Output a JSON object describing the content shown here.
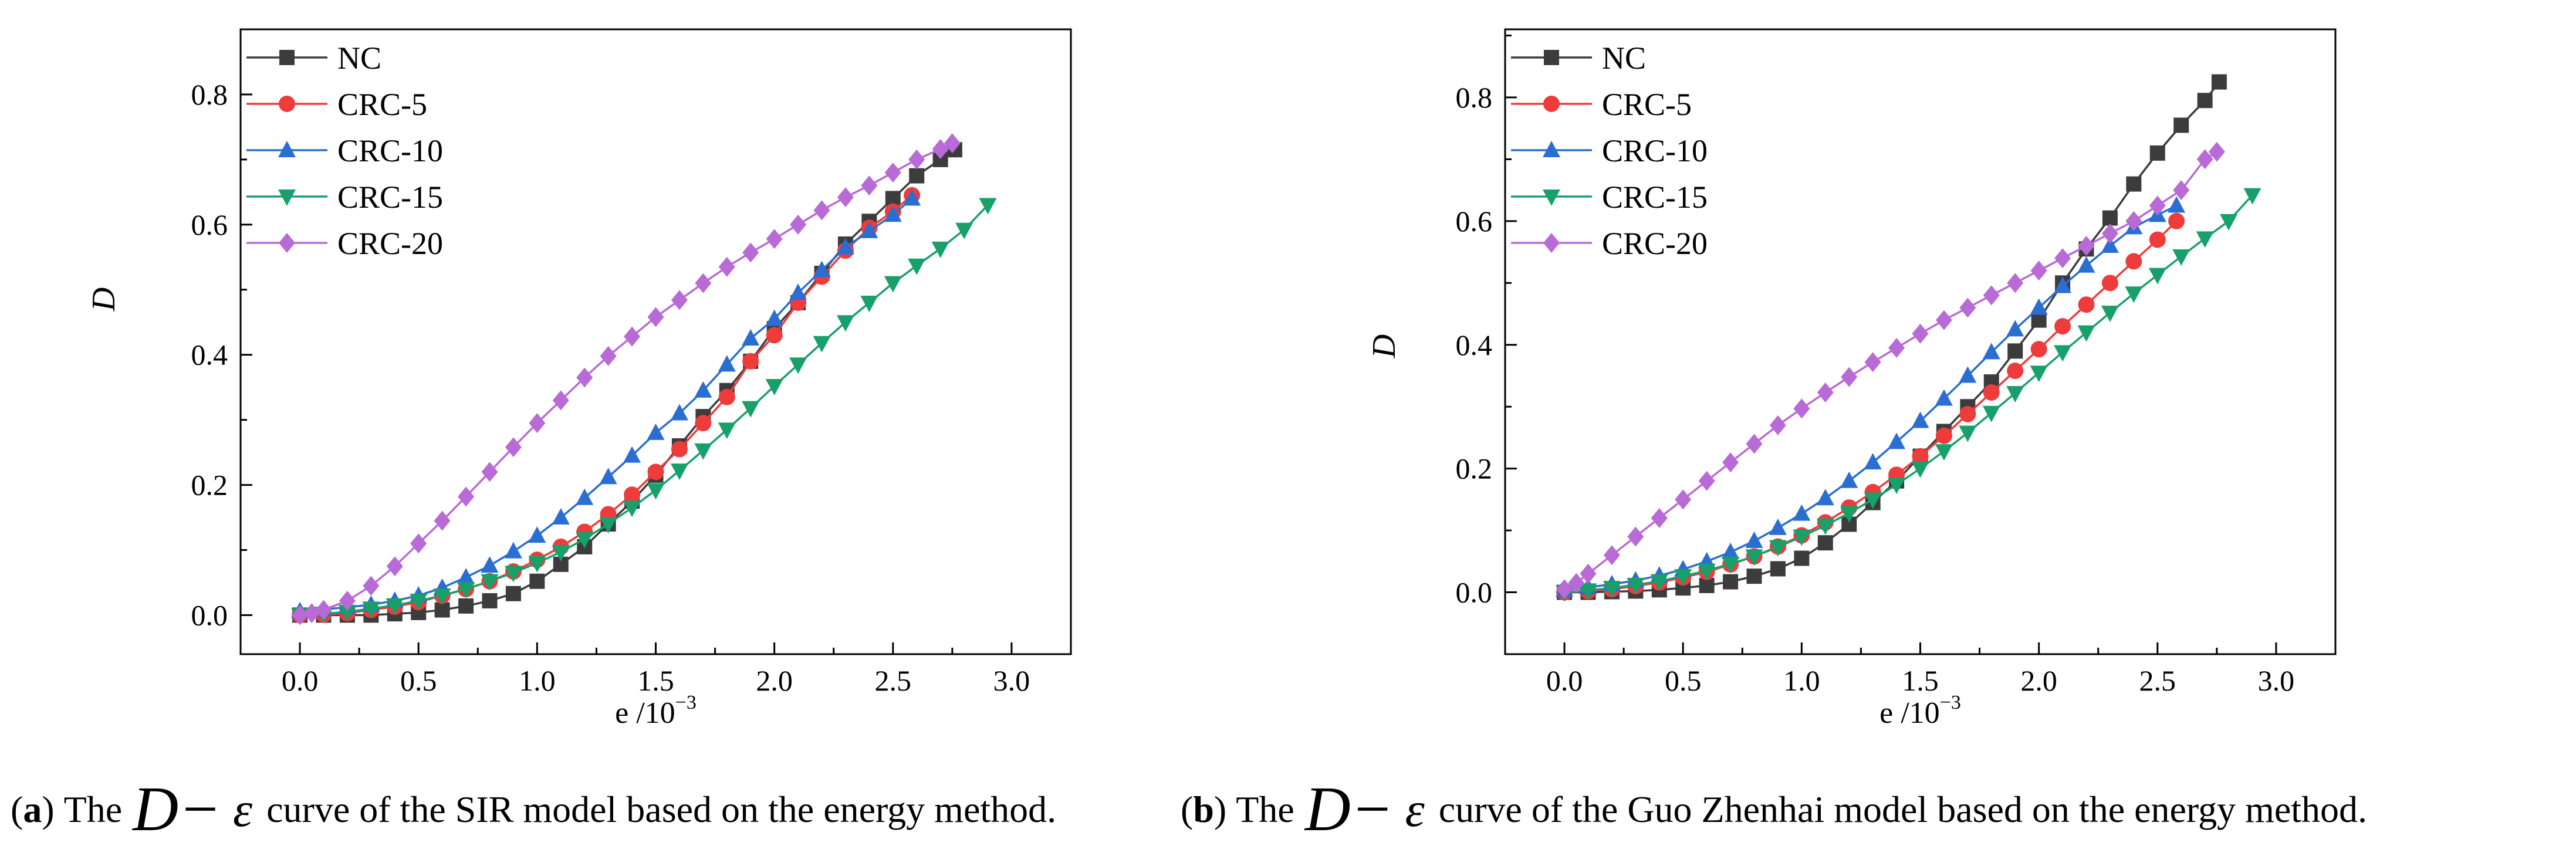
{
  "chart_data": [
    {
      "type": "line",
      "caption": {
        "label": "a",
        "prefix": "The",
        "symbol": "D−",
        "epsilon": "ε",
        "text": "curve of the SIR model based on the energy method."
      },
      "xlabel": "e /10",
      "xlabel_sup": "−3",
      "ylabel": "D",
      "xlim": [
        -0.25,
        3.25
      ],
      "ylim": [
        -0.06,
        0.9
      ],
      "xticks": [
        "0.0",
        "0.5",
        "1.0",
        "1.5",
        "2.0",
        "2.5",
        "3.0"
      ],
      "yticks": [
        "0.0",
        "0.2",
        "0.4",
        "0.6",
        "0.8"
      ],
      "series": [
        {
          "name": "NC",
          "color": "#3c3c3c",
          "marker": "square",
          "x": [
            0,
            0.1,
            0.2,
            0.3,
            0.4,
            0.5,
            0.6,
            0.7,
            0.8,
            0.9,
            1.0,
            1.1,
            1.2,
            1.3,
            1.4,
            1.5,
            1.6,
            1.7,
            1.8,
            1.9,
            2.0,
            2.1,
            2.2,
            2.3,
            2.4,
            2.5,
            2.6,
            2.7,
            2.76
          ],
          "y": [
            0,
            0,
            0,
            0,
            0.002,
            0.004,
            0.008,
            0.014,
            0.022,
            0.033,
            0.052,
            0.078,
            0.105,
            0.14,
            0.175,
            0.215,
            0.26,
            0.305,
            0.345,
            0.39,
            0.44,
            0.48,
            0.525,
            0.57,
            0.605,
            0.64,
            0.675,
            0.7,
            0.715
          ]
        },
        {
          "name": "CRC-5",
          "color": "#ee3b3b",
          "marker": "circle",
          "x": [
            0,
            0.1,
            0.2,
            0.3,
            0.4,
            0.5,
            0.6,
            0.7,
            0.8,
            0.9,
            1.0,
            1.1,
            1.2,
            1.3,
            1.4,
            1.5,
            1.6,
            1.7,
            1.8,
            1.9,
            2.0,
            2.1,
            2.2,
            2.3,
            2.4,
            2.5,
            2.58
          ],
          "y": [
            0,
            0.001,
            0.003,
            0.008,
            0.013,
            0.02,
            0.03,
            0.04,
            0.052,
            0.067,
            0.085,
            0.105,
            0.128,
            0.155,
            0.185,
            0.22,
            0.255,
            0.295,
            0.335,
            0.39,
            0.43,
            0.48,
            0.52,
            0.56,
            0.595,
            0.62,
            0.645
          ]
        },
        {
          "name": "CRC-10",
          "color": "#2a6ed2",
          "marker": "triangle",
          "x": [
            0,
            0.1,
            0.2,
            0.3,
            0.4,
            0.5,
            0.6,
            0.7,
            0.8,
            0.9,
            1.0,
            1.1,
            1.2,
            1.3,
            1.4,
            1.5,
            1.6,
            1.7,
            1.8,
            1.9,
            2.0,
            2.1,
            2.2,
            2.3,
            2.4,
            2.5,
            2.58
          ],
          "y": [
            0.006,
            0.009,
            0.012,
            0.016,
            0.022,
            0.03,
            0.042,
            0.058,
            0.076,
            0.098,
            0.122,
            0.15,
            0.18,
            0.212,
            0.245,
            0.28,
            0.31,
            0.345,
            0.385,
            0.425,
            0.455,
            0.495,
            0.53,
            0.565,
            0.59,
            0.615,
            0.64
          ]
        },
        {
          "name": "CRC-15",
          "color": "#17a06a",
          "marker": "triangle-down",
          "x": [
            0,
            0.1,
            0.2,
            0.3,
            0.4,
            0.5,
            0.6,
            0.7,
            0.8,
            0.9,
            1.0,
            1.1,
            1.2,
            1.3,
            1.4,
            1.5,
            1.6,
            1.7,
            1.8,
            1.9,
            2.0,
            2.1,
            2.2,
            2.3,
            2.4,
            2.5,
            2.6,
            2.7,
            2.8,
            2.9
          ],
          "y": [
            0,
            0.002,
            0.005,
            0.01,
            0.015,
            0.022,
            0.03,
            0.04,
            0.052,
            0.065,
            0.08,
            0.097,
            0.117,
            0.14,
            0.165,
            0.192,
            0.222,
            0.253,
            0.285,
            0.318,
            0.352,
            0.385,
            0.418,
            0.45,
            0.48,
            0.51,
            0.537,
            0.563,
            0.592,
            0.63
          ]
        },
        {
          "name": "CRC-20",
          "color": "#b86bd6",
          "marker": "diamond",
          "x": [
            0,
            0.05,
            0.1,
            0.2,
            0.3,
            0.4,
            0.5,
            0.6,
            0.7,
            0.8,
            0.9,
            1.0,
            1.1,
            1.2,
            1.3,
            1.4,
            1.5,
            1.6,
            1.7,
            1.8,
            1.9,
            2.0,
            2.1,
            2.2,
            2.3,
            2.4,
            2.5,
            2.6,
            2.7,
            2.75
          ],
          "y": [
            0,
            0.003,
            0.008,
            0.022,
            0.045,
            0.075,
            0.11,
            0.145,
            0.182,
            0.22,
            0.258,
            0.295,
            0.33,
            0.365,
            0.398,
            0.428,
            0.458,
            0.484,
            0.51,
            0.535,
            0.557,
            0.578,
            0.6,
            0.622,
            0.642,
            0.66,
            0.68,
            0.7,
            0.716,
            0.725
          ]
        }
      ]
    },
    {
      "type": "line",
      "caption": {
        "label": "b",
        "prefix": "The",
        "symbol": "D−",
        "epsilon": "ε",
        "text": "curve of the Guo Zhenhai model based on the energy method."
      },
      "xlabel": "e /10",
      "xlabel_sup": "−3",
      "ylabel": "D",
      "xlim": [
        -0.25,
        3.25
      ],
      "ylim": [
        -0.1,
        0.91
      ],
      "xticks": [
        "0.0",
        "0.5",
        "1.0",
        "1.5",
        "2.0",
        "2.5",
        "3.0"
      ],
      "yticks": [
        "0.0",
        "0.2",
        "0.4",
        "0.6",
        "0.8"
      ],
      "series": [
        {
          "name": "NC",
          "color": "#3c3c3c",
          "marker": "square",
          "x": [
            0,
            0.1,
            0.2,
            0.3,
            0.4,
            0.5,
            0.6,
            0.7,
            0.8,
            0.9,
            1.0,
            1.1,
            1.2,
            1.3,
            1.4,
            1.5,
            1.6,
            1.7,
            1.8,
            1.9,
            2.0,
            2.1,
            2.2,
            2.3,
            2.4,
            2.5,
            2.6,
            2.7,
            2.76
          ],
          "y": [
            0,
            0,
            0.001,
            0.002,
            0.004,
            0.007,
            0.011,
            0.017,
            0.026,
            0.038,
            0.055,
            0.08,
            0.11,
            0.145,
            0.18,
            0.22,
            0.26,
            0.3,
            0.34,
            0.39,
            0.44,
            0.5,
            0.555,
            0.605,
            0.66,
            0.71,
            0.755,
            0.795,
            0.825
          ]
        },
        {
          "name": "CRC-5",
          "color": "#ee3b3b",
          "marker": "circle",
          "x": [
            0,
            0.1,
            0.2,
            0.3,
            0.4,
            0.5,
            0.6,
            0.7,
            0.8,
            0.9,
            1.0,
            1.1,
            1.2,
            1.3,
            1.4,
            1.5,
            1.6,
            1.7,
            1.8,
            1.9,
            2.0,
            2.1,
            2.2,
            2.3,
            2.4,
            2.5,
            2.58
          ],
          "y": [
            0,
            0.002,
            0.005,
            0.01,
            0.016,
            0.024,
            0.033,
            0.045,
            0.058,
            0.074,
            0.092,
            0.113,
            0.137,
            0.162,
            0.19,
            0.22,
            0.253,
            0.288,
            0.323,
            0.358,
            0.393,
            0.43,
            0.465,
            0.5,
            0.535,
            0.57,
            0.6
          ]
        },
        {
          "name": "CRC-10",
          "color": "#2a6ed2",
          "marker": "triangle",
          "x": [
            0,
            0.1,
            0.2,
            0.3,
            0.4,
            0.5,
            0.6,
            0.7,
            0.8,
            0.9,
            1.0,
            1.1,
            1.2,
            1.3,
            1.4,
            1.5,
            1.6,
            1.7,
            1.8,
            1.9,
            2.0,
            2.1,
            2.2,
            2.3,
            2.4,
            2.5,
            2.58
          ],
          "y": [
            0.004,
            0.008,
            0.013,
            0.019,
            0.027,
            0.037,
            0.05,
            0.065,
            0.083,
            0.104,
            0.127,
            0.152,
            0.18,
            0.21,
            0.243,
            0.277,
            0.313,
            0.35,
            0.388,
            0.425,
            0.46,
            0.495,
            0.528,
            0.56,
            0.59,
            0.61,
            0.625
          ]
        },
        {
          "name": "CRC-15",
          "color": "#17a06a",
          "marker": "triangle-down",
          "x": [
            0,
            0.1,
            0.2,
            0.3,
            0.4,
            0.5,
            0.6,
            0.7,
            0.8,
            0.9,
            1.0,
            1.1,
            1.2,
            1.3,
            1.4,
            1.5,
            1.6,
            1.7,
            1.8,
            1.9,
            2.0,
            2.1,
            2.2,
            2.3,
            2.4,
            2.5,
            2.6,
            2.7,
            2.8,
            2.9
          ],
          "y": [
            0,
            0.003,
            0.007,
            0.012,
            0.018,
            0.026,
            0.035,
            0.046,
            0.058,
            0.073,
            0.09,
            0.108,
            0.128,
            0.15,
            0.174,
            0.2,
            0.228,
            0.258,
            0.29,
            0.322,
            0.355,
            0.388,
            0.42,
            0.452,
            0.483,
            0.513,
            0.543,
            0.572,
            0.6,
            0.642
          ]
        },
        {
          "name": "CRC-20",
          "color": "#b86bd6",
          "marker": "diamond",
          "x": [
            0,
            0.05,
            0.1,
            0.2,
            0.3,
            0.4,
            0.5,
            0.6,
            0.7,
            0.8,
            0.9,
            1.0,
            1.1,
            1.2,
            1.3,
            1.4,
            1.5,
            1.6,
            1.7,
            1.8,
            1.9,
            2.0,
            2.1,
            2.2,
            2.3,
            2.4,
            2.5,
            2.6,
            2.7,
            2.75
          ],
          "y": [
            0.005,
            0.015,
            0.03,
            0.06,
            0.09,
            0.12,
            0.15,
            0.18,
            0.21,
            0.24,
            0.27,
            0.297,
            0.323,
            0.348,
            0.372,
            0.395,
            0.418,
            0.44,
            0.46,
            0.48,
            0.5,
            0.52,
            0.54,
            0.56,
            0.58,
            0.6,
            0.625,
            0.65,
            0.7,
            0.712
          ]
        }
      ]
    }
  ]
}
